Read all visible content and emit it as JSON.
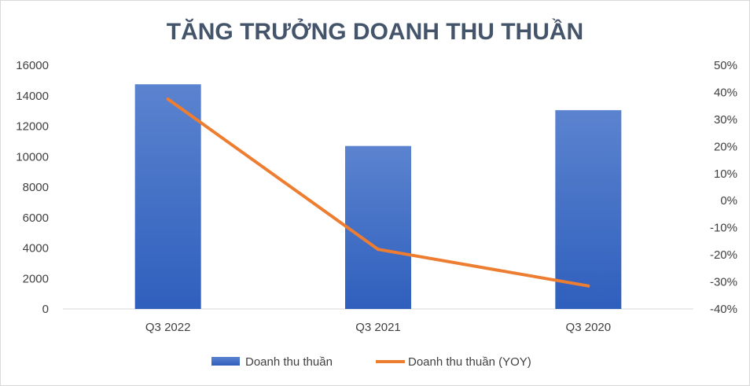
{
  "chart_data": {
    "type": "bar",
    "title": "TĂNG TRƯỞNG DOANH THU THUẦN",
    "categories": [
      "Q3 2022",
      "Q3 2021",
      "Q3 2020"
    ],
    "series": [
      {
        "name": "Doanh thu thuần",
        "type": "bar",
        "axis": "left",
        "values": [
          14750,
          10700,
          13050
        ],
        "color": "#4472c4"
      },
      {
        "name": "Doanh thu thuần (YOY)",
        "type": "line",
        "axis": "right",
        "values": [
          0.375,
          -0.18,
          -0.315
        ],
        "color": "#ed7d31"
      }
    ],
    "y_left": {
      "min": 0,
      "max": 16000,
      "step": 2000,
      "ticks": [
        "0",
        "2000",
        "4000",
        "6000",
        "8000",
        "10000",
        "12000",
        "14000",
        "16000"
      ]
    },
    "y_right": {
      "min": -0.4,
      "max": 0.5,
      "step": 0.1,
      "ticks": [
        "-40%",
        "-30%",
        "-20%",
        "-10%",
        "0%",
        "10%",
        "20%",
        "30%",
        "40%",
        "50%"
      ]
    },
    "grid": false,
    "legend_position": "bottom"
  }
}
